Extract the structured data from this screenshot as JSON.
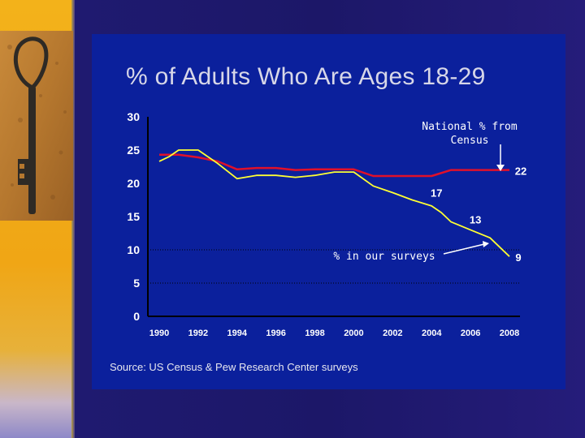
{
  "slide": {
    "title": "% of Adults Who Are Ages 18-29",
    "source": "Source: US Census & Pew Research Center surveys",
    "accent_color": "#0b209c",
    "photo_icon": "key-photo"
  },
  "chart_data": {
    "type": "line",
    "title": "% of Adults Who Are Ages 18-29",
    "xlabel": "",
    "ylabel": "",
    "ylim": [
      0,
      30
    ],
    "xlim": [
      1990,
      2008
    ],
    "y_ticks": [
      "0",
      "5",
      "10",
      "15",
      "20",
      "25",
      "30"
    ],
    "x_ticks": [
      "1990",
      "1992",
      "1994",
      "1996",
      "1998",
      "2000",
      "2002",
      "2004",
      "2006",
      "2008"
    ],
    "gridlines_at": [
      5,
      10
    ],
    "series": [
      {
        "name": "National % from Census",
        "color": "#e0102a",
        "x": [
          1990,
          1991,
          1992,
          1993,
          1994,
          1995,
          1996,
          1997,
          1998,
          1999,
          2000,
          2001,
          2002,
          2003,
          2004,
          2005,
          2006,
          2007,
          2008
        ],
        "values": [
          24.3,
          24.3,
          23.9,
          23.3,
          22.1,
          22.3,
          22.3,
          22.0,
          22.1,
          22.1,
          22.1,
          21.1,
          21.1,
          21.1,
          21.1,
          22.0,
          22.0,
          22.0,
          22.0
        ]
      },
      {
        "name": "% in our surveys",
        "color": "#ffff33",
        "x": [
          1990,
          1990.5,
          1991,
          1992,
          1993,
          1994,
          1995,
          1996,
          1997,
          1998,
          1999,
          2000,
          2001,
          2002,
          2003,
          2004,
          2004.5,
          2005,
          2006,
          2007,
          2008
        ],
        "values": [
          23.3,
          24.0,
          25.0,
          25.0,
          23.0,
          20.7,
          21.2,
          21.2,
          20.9,
          21.2,
          21.7,
          21.7,
          19.6,
          18.6,
          17.5,
          16.6,
          15.6,
          14.2,
          13.0,
          11.8,
          9.0
        ]
      }
    ],
    "data_labels": [
      {
        "text": "22",
        "series": "National % from Census",
        "x": 2008,
        "y": 22
      },
      {
        "text": "17",
        "series": "% in our surveys",
        "x": 2004,
        "y": 17
      },
      {
        "text": "13",
        "series": "% in our surveys",
        "x": 2006,
        "y": 13
      },
      {
        "text": "9",
        "series": "% in our surveys",
        "x": 2008,
        "y": 9
      }
    ],
    "annotations": [
      {
        "lines": [
          "National % from",
          "Census"
        ],
        "points_to": "National % from Census"
      },
      {
        "lines": [
          "% in our surveys"
        ],
        "points_to": "% in our surveys"
      }
    ],
    "legend": "none"
  }
}
